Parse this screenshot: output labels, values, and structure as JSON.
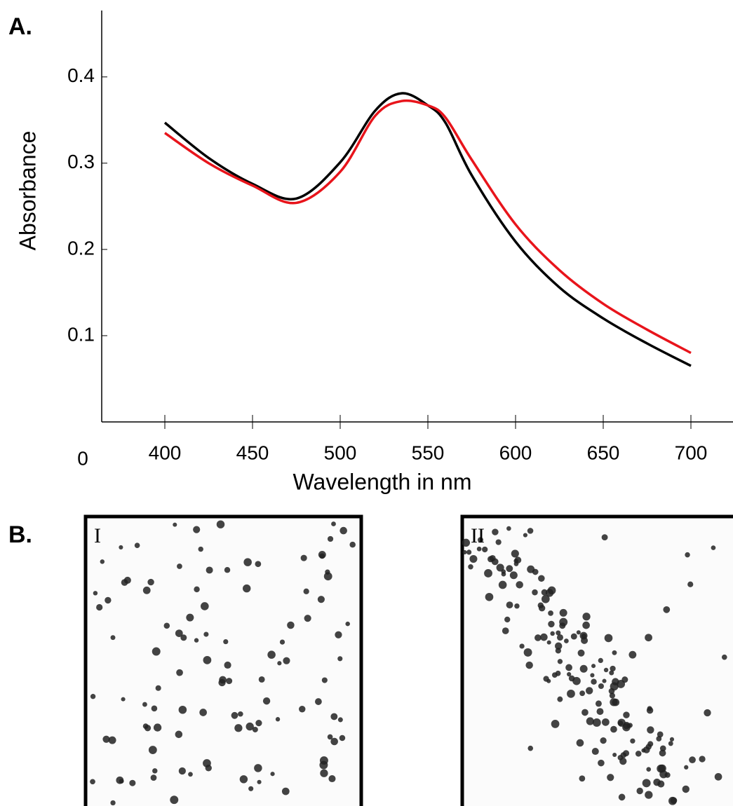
{
  "chart_data": {
    "type": "line",
    "x_label": "Wavelength in nm",
    "y_label": "Absorbance",
    "x": [
      400,
      425,
      450,
      475,
      500,
      520,
      535,
      550,
      560,
      575,
      600,
      625,
      650,
      675,
      700
    ],
    "series": [
      {
        "color": "#000000",
        "values": [
          0.347,
          0.306,
          0.276,
          0.259,
          0.301,
          0.361,
          0.381,
          0.367,
          0.347,
          0.286,
          0.209,
          0.156,
          0.12,
          0.091,
          0.065
        ]
      },
      {
        "color": "#e8141b",
        "values": [
          0.335,
          0.3,
          0.274,
          0.254,
          0.29,
          0.355,
          0.372,
          0.367,
          0.353,
          0.304,
          0.229,
          0.176,
          0.137,
          0.107,
          0.08
        ]
      }
    ],
    "xlim": [
      364,
      724
    ],
    "ylim": [
      0,
      0.477
    ],
    "xticks": [
      400,
      450,
      500,
      550,
      600,
      650,
      700
    ],
    "yticks": [
      0,
      0.1,
      0.2,
      0.3,
      0.4
    ]
  },
  "panel_labels": [
    "A.",
    "B."
  ],
  "images": [
    {
      "label": "I"
    },
    {
      "label": "II"
    }
  ]
}
